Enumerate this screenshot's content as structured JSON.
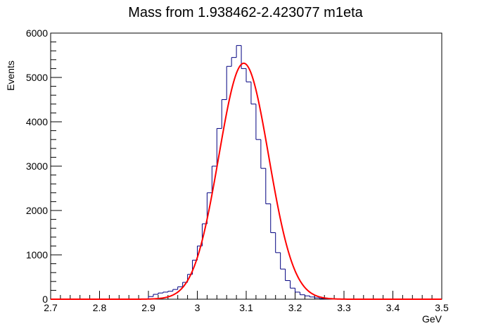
{
  "chart_data": {
    "type": "histogram",
    "title": "Mass from 1.938462-2.423077 m1eta",
    "xlabel": "GeV",
    "ylabel": "Events",
    "xlim": [
      2.7,
      3.5
    ],
    "ylim": [
      0,
      6000
    ],
    "x_ticks": [
      "2.7",
      "2.8",
      "2.9",
      "3",
      "3.1",
      "3.2",
      "3.3",
      "3.4",
      "3.5"
    ],
    "y_ticks": [
      "0",
      "1000",
      "2000",
      "3000",
      "4000",
      "5000",
      "6000"
    ],
    "grid": false,
    "legend": "none",
    "series": [
      {
        "kind": "histogram",
        "color": "#000080",
        "bin_edges": [
          2.7,
          2.71,
          2.72,
          2.73,
          2.74,
          2.75,
          2.76,
          2.77,
          2.78,
          2.79,
          2.8,
          2.81,
          2.82,
          2.83,
          2.84,
          2.85,
          2.86,
          2.87,
          2.88,
          2.89,
          2.9,
          2.91,
          2.92,
          2.93,
          2.94,
          2.95,
          2.96,
          2.97,
          2.98,
          2.99,
          3.0,
          3.01,
          3.02,
          3.03,
          3.04,
          3.05,
          3.06,
          3.07,
          3.08,
          3.09,
          3.1,
          3.11,
          3.12,
          3.13,
          3.14,
          3.15,
          3.16,
          3.17,
          3.18,
          3.19,
          3.2,
          3.21,
          3.22,
          3.23,
          3.24,
          3.25,
          3.26,
          3.27,
          3.28,
          3.29,
          3.3,
          3.31,
          3.32,
          3.33,
          3.34,
          3.35,
          3.36,
          3.37,
          3.38,
          3.39,
          3.4,
          3.41,
          3.42,
          3.43,
          3.44,
          3.45,
          3.46,
          3.47,
          3.48,
          3.49,
          3.5
        ],
        "values": [
          0,
          0,
          0,
          0,
          0,
          0,
          0,
          0,
          0,
          0,
          0,
          0,
          0,
          0,
          0,
          0,
          0,
          0,
          0,
          0,
          60,
          110,
          140,
          160,
          180,
          220,
          280,
          380,
          560,
          880,
          1200,
          1700,
          2400,
          3000,
          3850,
          4500,
          5250,
          5450,
          5720,
          5200,
          4900,
          4400,
          3600,
          2950,
          2150,
          1500,
          1050,
          680,
          420,
          250,
          160,
          100,
          75,
          50,
          30,
          15,
          10,
          5,
          0,
          0,
          0,
          0,
          0,
          0,
          0,
          0,
          0,
          0,
          0,
          0,
          0,
          0,
          0,
          0,
          0,
          0,
          0,
          0,
          0,
          0
        ]
      },
      {
        "kind": "fit",
        "shape": "gaussian",
        "color": "#ff0000",
        "mean": 3.095,
        "sigma": 0.051,
        "amplitude": 5320,
        "x_range": [
          2.7,
          3.5
        ]
      }
    ]
  }
}
